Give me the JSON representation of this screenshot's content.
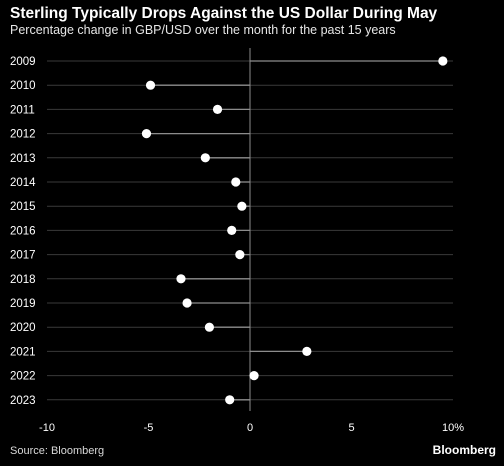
{
  "header": {
    "title": "Sterling Typically Drops Against the US Dollar During May",
    "subtitle": "Percentage change in GBP/USD over the month for the past 15 years"
  },
  "footer": {
    "source": "Source: Bloomberg",
    "logo": "Bloomberg"
  },
  "colors": {
    "background": "#000000",
    "text": "#ffffff",
    "grid": "#3a3a3a",
    "axis": "#8c8c8c",
    "stem": "#8c8c8c",
    "point": "#ffffff"
  },
  "chart_data": {
    "type": "scatter",
    "style": "lollipop",
    "title": "Sterling Typically Drops Against the US Dollar During May",
    "subtitle": "Percentage change in GBP/USD over the month for the past 15 years",
    "categories": [
      "2009",
      "2010",
      "2011",
      "2012",
      "2013",
      "2014",
      "2015",
      "2016",
      "2017",
      "2018",
      "2019",
      "2020",
      "2021",
      "2022",
      "2023"
    ],
    "values": [
      9.5,
      -4.9,
      -1.6,
      -5.1,
      -2.2,
      -0.7,
      -0.4,
      -0.9,
      -0.5,
      -3.4,
      -3.1,
      -2.0,
      2.8,
      0.2,
      -1.0
    ],
    "xlim": [
      -10,
      10
    ],
    "xticks": [
      -10,
      -5,
      0,
      5,
      10
    ],
    "xtick_labels": [
      "-10",
      "-5",
      "0",
      "5",
      "10%"
    ],
    "grid": "horizontal",
    "legend": "none"
  }
}
